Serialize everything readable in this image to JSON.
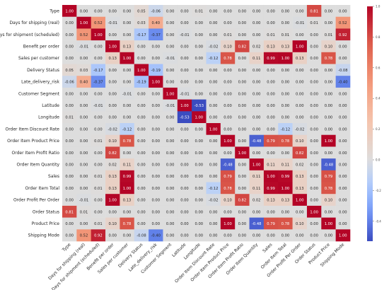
{
  "chart_data": {
    "type": "heatmap",
    "title": "",
    "xlabel": "",
    "ylabel": "",
    "labels": [
      "Type",
      "Days for shipping (real)",
      "Days for shipment (scheduled)",
      "Benefit per order",
      "Sales per customer",
      "Delivery Status",
      "Late_delivery_risk",
      "Customer Segment",
      "Latitude",
      "Longitude",
      "Order Item Discount Rate",
      "Order Item Product Price",
      "Order Item Profit Ratio",
      "Order Item Quantity",
      "Sales",
      "Order Item Total",
      "Order Profit Per Order",
      "Order Status",
      "Product Price",
      "Shipping Mode"
    ],
    "values": [
      [
        1.0,
        0.0,
        0.0,
        -0.0,
        0.0,
        0.05,
        -0.06,
        -0.0,
        -0.0,
        0.01,
        -0.0,
        0.0,
        -0.0,
        0.0,
        0.0,
        0.0,
        -0.0,
        0.81,
        -0.0,
        0.0
      ],
      [
        0.0,
        1.0,
        0.52,
        -0.01,
        0.0,
        0.03,
        0.4,
        0.0,
        -0.0,
        0.0,
        0.0,
        0.0,
        -0.0,
        -0.0,
        0.0,
        0.0,
        -0.01,
        0.01,
        0.0,
        0.52
      ],
      [
        0.0,
        0.52,
        1.0,
        -0.0,
        0.0,
        -0.17,
        -0.37,
        -0.0,
        -0.01,
        0.0,
        0.0,
        0.01,
        -0.0,
        0.0,
        0.01,
        0.01,
        -0.0,
        0.0,
        0.01,
        0.92
      ],
      [
        -0.0,
        -0.01,
        -0.0,
        1.0,
        0.13,
        0.0,
        -0.0,
        0.0,
        0.0,
        -0.0,
        -0.02,
        0.1,
        0.82,
        0.02,
        0.13,
        0.13,
        1.0,
        -0.0,
        0.1,
        -0.0
      ],
      [
        0.0,
        0.0,
        0.0,
        0.13,
        1.0,
        -0.0,
        -0.0,
        -0.01,
        -0.0,
        0.0,
        -0.12,
        0.78,
        -0.0,
        0.11,
        0.99,
        1.0,
        0.13,
        0.0,
        0.78,
        0.0
      ],
      [
        0.05,
        0.03,
        -0.17,
        0.0,
        -0.0,
        1.0,
        -0.19,
        0.0,
        -0.0,
        0.0,
        -0.0,
        -0.0,
        -0.0,
        -0.0,
        -0.0,
        -0.0,
        0.0,
        -0.0,
        -0.0,
        -0.08
      ],
      [
        -0.06,
        0.4,
        -0.37,
        -0.0,
        -0.0,
        -0.19,
        1.0,
        0.0,
        -0.0,
        0.0,
        0.0,
        0.0,
        -0.0,
        -0.0,
        0.0,
        -0.0,
        -0.0,
        -0.0,
        0.0,
        -0.4
      ],
      [
        -0.0,
        0.0,
        -0.0,
        0.0,
        -0.01,
        0.0,
        0.0,
        1.0,
        -0.01,
        0.0,
        -0.0,
        -0.0,
        -0.0,
        0.0,
        -0.0,
        -0.0,
        0.0,
        -0.0,
        -0.0,
        0.0
      ],
      [
        -0.0,
        -0.0,
        -0.01,
        0.0,
        -0.0,
        -0.0,
        -0.0,
        -0.01,
        1.0,
        -0.53,
        -0.0,
        0.0,
        0.0,
        -0.0,
        0.0,
        -0.0,
        0.0,
        -0.0,
        0.0,
        -0.0
      ],
      [
        0.01,
        0.0,
        0.0,
        -0.0,
        0.0,
        0.0,
        0.0,
        0.0,
        -0.53,
        1.0,
        0.0,
        0.0,
        0.0,
        -0.0,
        0.0,
        0.0,
        -0.0,
        0.0,
        0.0,
        0.0
      ],
      [
        -0.0,
        0.0,
        0.0,
        -0.02,
        -0.12,
        -0.0,
        0.0,
        -0.0,
        -0.0,
        0.0,
        1.0,
        0.0,
        -0.0,
        -0.0,
        -0.0,
        -0.12,
        -0.02,
        -0.0,
        0.0,
        0.0
      ],
      [
        0.0,
        0.0,
        0.01,
        0.1,
        0.78,
        -0.0,
        0.0,
        -0.0,
        0.0,
        0.0,
        0.0,
        1.0,
        0.0,
        -0.48,
        0.79,
        0.78,
        0.1,
        0.0,
        1.0,
        0.0
      ],
      [
        -0.0,
        -0.0,
        -0.0,
        0.82,
        -0.0,
        -0.0,
        -0.0,
        -0.0,
        0.0,
        0.0,
        -0.0,
        0.0,
        1.0,
        0.0,
        0.0,
        -0.0,
        0.82,
        -0.0,
        0.0,
        -0.0
      ],
      [
        0.0,
        -0.0,
        0.0,
        0.02,
        0.11,
        -0.0,
        -0.0,
        0.0,
        -0.0,
        -0.0,
        -0.0,
        -0.48,
        0.0,
        1.0,
        0.11,
        0.11,
        0.02,
        0.0,
        -0.48,
        0.0
      ],
      [
        0.0,
        0.0,
        0.01,
        0.13,
        0.99,
        -0.0,
        0.0,
        -0.0,
        0.0,
        0.0,
        -0.0,
        0.79,
        0.0,
        0.11,
        1.0,
        0.99,
        0.13,
        0.0,
        0.79,
        0.0
      ],
      [
        0.0,
        0.0,
        0.01,
        0.13,
        1.0,
        -0.0,
        -0.0,
        -0.0,
        -0.0,
        0.0,
        -0.12,
        0.78,
        -0.0,
        0.11,
        0.99,
        1.0,
        0.13,
        0.0,
        0.78,
        0.0
      ],
      [
        -0.0,
        -0.01,
        -0.0,
        1.0,
        0.13,
        0.0,
        -0.0,
        0.0,
        0.0,
        -0.0,
        -0.02,
        0.1,
        0.82,
        0.02,
        0.13,
        0.13,
        1.0,
        -0.0,
        0.1,
        -0.0
      ],
      [
        0.81,
        0.01,
        0.0,
        -0.0,
        0.0,
        -0.0,
        -0.0,
        -0.0,
        -0.0,
        0.0,
        -0.0,
        0.0,
        -0.0,
        0.0,
        0.0,
        0.0,
        -0.0,
        1.0,
        0.0,
        0.0
      ],
      [
        -0.0,
        0.0,
        0.01,
        0.1,
        0.78,
        -0.0,
        0.0,
        -0.0,
        0.0,
        0.0,
        0.0,
        1.0,
        0.0,
        -0.48,
        0.79,
        0.78,
        0.1,
        0.0,
        1.0,
        0.0
      ],
      [
        0.0,
        0.52,
        0.92,
        -0.0,
        0.0,
        -0.08,
        -0.4,
        0.0,
        -0.0,
        0.0,
        0.0,
        0.0,
        -0.0,
        0.0,
        0.0,
        0.0,
        -0.0,
        0.0,
        0.0,
        1.0
      ]
    ],
    "colorbar": {
      "ticks": [
        1.0,
        0.8,
        0.6,
        0.4,
        0.2,
        0.0,
        -0.2,
        -0.4
      ],
      "range": [
        -0.53,
        1.0
      ],
      "colormap": "coolwarm",
      "low_color": "#3b4cc0",
      "mid_color": "#dddddd",
      "high_color": "#b40426"
    }
  }
}
